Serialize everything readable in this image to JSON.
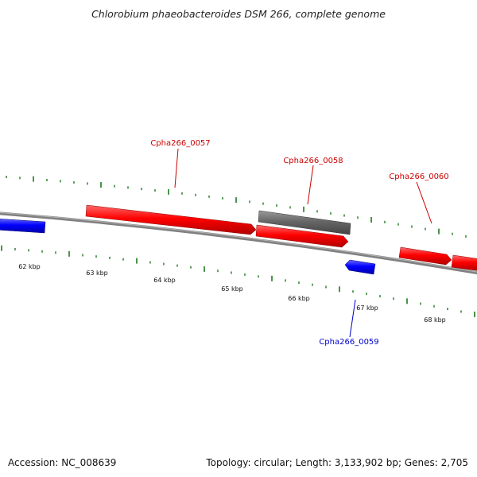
{
  "title": "Chlorobium phaeobacteroides DSM 266, complete genome",
  "footer": {
    "accession": "Accession: NC_008639",
    "summary": "Topology: circular; Length: 3,133,902 bp; Genes: 2,705"
  },
  "colors": {
    "forward_gene": "#ff0000",
    "reverse_gene": "#0000ff",
    "rna_gene": "#666666",
    "backbone": "#808080",
    "tick": "#1e7a1e",
    "forward_label": "#cc0000",
    "reverse_label": "#0000cc"
  },
  "scale": {
    "ticks": [
      {
        "label": "62 kbp"
      },
      {
        "label": "63 kbp"
      },
      {
        "label": "64 kbp"
      },
      {
        "label": "65 kbp"
      },
      {
        "label": "66 kbp"
      },
      {
        "label": "67 kbp"
      },
      {
        "label": "68 kbp"
      }
    ]
  },
  "genes": [
    {
      "locus": "Cpha266_0057",
      "strand": "+",
      "color": "#ff0000"
    },
    {
      "locus": "Cpha266_0058",
      "strand": "+",
      "color": "#666666"
    },
    {
      "locus": "Cpha266_0059",
      "strand": "-",
      "color": "#0000ff"
    },
    {
      "locus": "Cpha266_0060",
      "strand": "+",
      "color": "#ff0000"
    }
  ]
}
